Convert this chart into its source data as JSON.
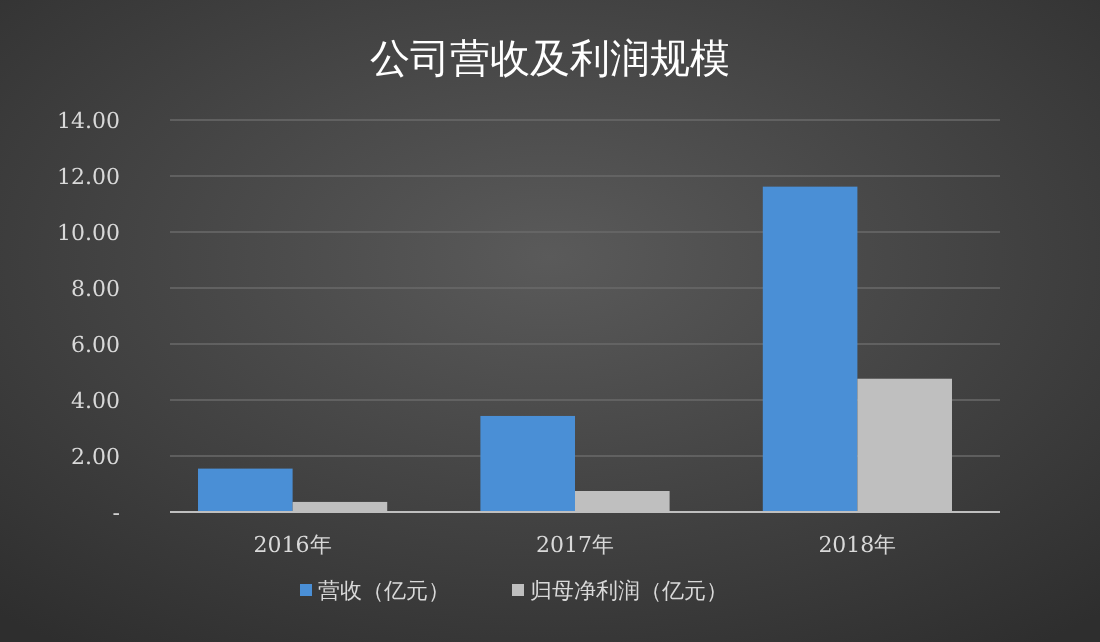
{
  "chart_data": {
    "type": "bar",
    "title": "公司营收及利润规模",
    "categories": [
      "2016年",
      "2017年",
      "2018年"
    ],
    "series": [
      {
        "name": "营收（亿元）",
        "color": "#4a8fd6",
        "values": [
          1.55,
          3.43,
          11.62
        ]
      },
      {
        "name": "归母净利润（亿元）",
        "color": "#bfbfbf",
        "values": [
          0.36,
          0.75,
          4.76
        ]
      }
    ],
    "ylim": [
      0,
      14
    ],
    "yticks": [
      {
        "value": 0,
        "label": "-"
      },
      {
        "value": 2,
        "label": "2.00"
      },
      {
        "value": 4,
        "label": "4.00"
      },
      {
        "value": 6,
        "label": "6.00"
      },
      {
        "value": 8,
        "label": "8.00"
      },
      {
        "value": 10,
        "label": "10.00"
      },
      {
        "value": 12,
        "label": "12.00"
      },
      {
        "value": 14,
        "label": "14.00"
      }
    ],
    "grid": "y",
    "legend": "bottom"
  }
}
